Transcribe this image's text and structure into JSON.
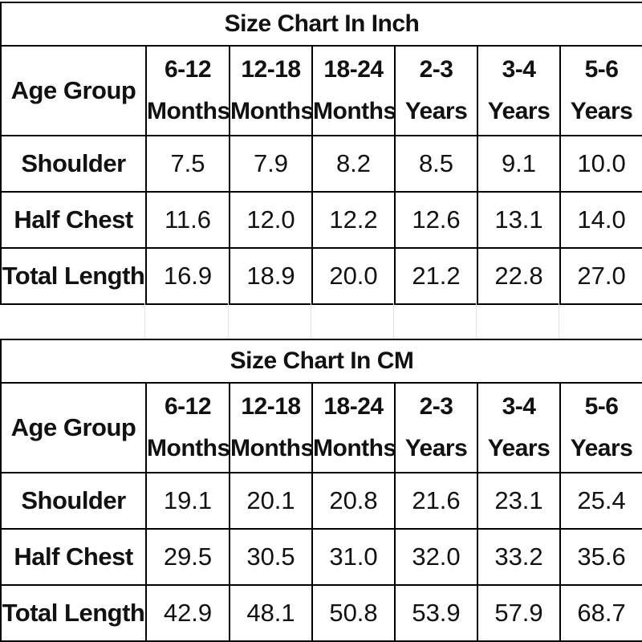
{
  "tables": [
    {
      "title": "Size Chart In Inch",
      "row_header": "Age Group",
      "columns": [
        [
          "6-12",
          "Months"
        ],
        [
          "12-18",
          "Months"
        ],
        [
          "18-24",
          "Months"
        ],
        [
          "2-3",
          "Years"
        ],
        [
          "3-4",
          "Years"
        ],
        [
          "5-6",
          "Years"
        ]
      ],
      "rows": [
        {
          "label": "Shoulder",
          "values": [
            "7.5",
            "7.9",
            "8.2",
            "8.5",
            "9.1",
            "10.0"
          ]
        },
        {
          "label": "Half Chest",
          "values": [
            "11.6",
            "12.0",
            "12.2",
            "12.6",
            "13.1",
            "14.0"
          ]
        },
        {
          "label": "Total Length",
          "values": [
            "16.9",
            "18.9",
            "20.0",
            "21.2",
            "22.8",
            "27.0"
          ]
        }
      ]
    },
    {
      "title": "Size Chart In CM",
      "row_header": "Age Group",
      "columns": [
        [
          "6-12",
          "Months"
        ],
        [
          "12-18",
          "Months"
        ],
        [
          "18-24",
          "Months"
        ],
        [
          "2-3",
          "Years"
        ],
        [
          "3-4",
          "Years"
        ],
        [
          "5-6",
          "Years"
        ]
      ],
      "rows": [
        {
          "label": "Shoulder",
          "values": [
            "19.1",
            "20.1",
            "20.8",
            "21.6",
            "23.1",
            "25.4"
          ]
        },
        {
          "label": "Half Chest",
          "values": [
            "29.5",
            "30.5",
            "31.0",
            "32.0",
            "33.2",
            "35.6"
          ]
        },
        {
          "label": "Total Length",
          "values": [
            "42.9",
            "48.1",
            "50.8",
            "53.9",
            "57.9",
            "68.7"
          ]
        }
      ]
    }
  ]
}
